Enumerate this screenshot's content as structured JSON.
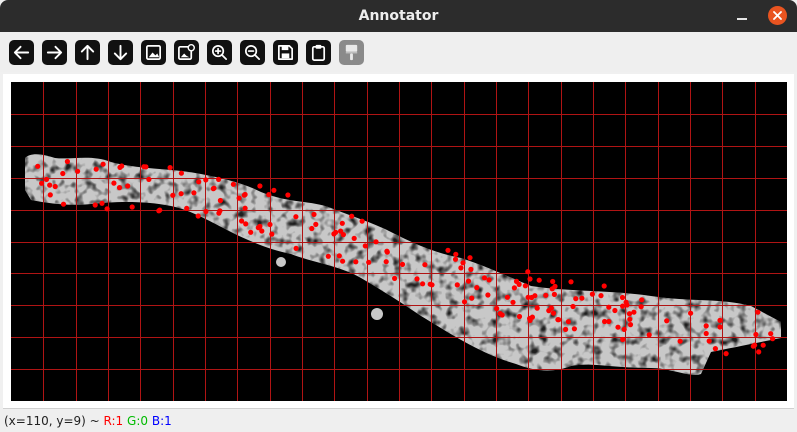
{
  "window": {
    "title": "Annotator",
    "close_color": "#e95420"
  },
  "toolbar": {
    "buttons": [
      {
        "icon": "arrow-left-icon",
        "enabled": true
      },
      {
        "icon": "arrow-right-icon",
        "enabled": true
      },
      {
        "icon": "arrow-up-icon",
        "enabled": true
      },
      {
        "icon": "arrow-down-icon",
        "enabled": true
      },
      {
        "icon": "image-icon",
        "enabled": true
      },
      {
        "icon": "image-edit-icon",
        "enabled": true
      },
      {
        "icon": "zoom-in-icon",
        "enabled": true
      },
      {
        "icon": "zoom-out-icon",
        "enabled": true
      },
      {
        "icon": "save-icon",
        "enabled": true
      },
      {
        "icon": "clipboard-icon",
        "enabled": true
      },
      {
        "icon": "paint-brush-icon",
        "enabled": false
      }
    ]
  },
  "canvas": {
    "background": "#000000",
    "grid_color": "#b01414",
    "marker_color": "#ff0000",
    "grid_columns": 24,
    "grid_rows": 10
  },
  "status": {
    "coords": "(x=110, y=9) ~",
    "r_label": "R:1",
    "g_label": "G:0",
    "b_label": "B:1",
    "r_color": "#ff0000",
    "g_color": "#00bb00",
    "b_color": "#0000ff"
  }
}
